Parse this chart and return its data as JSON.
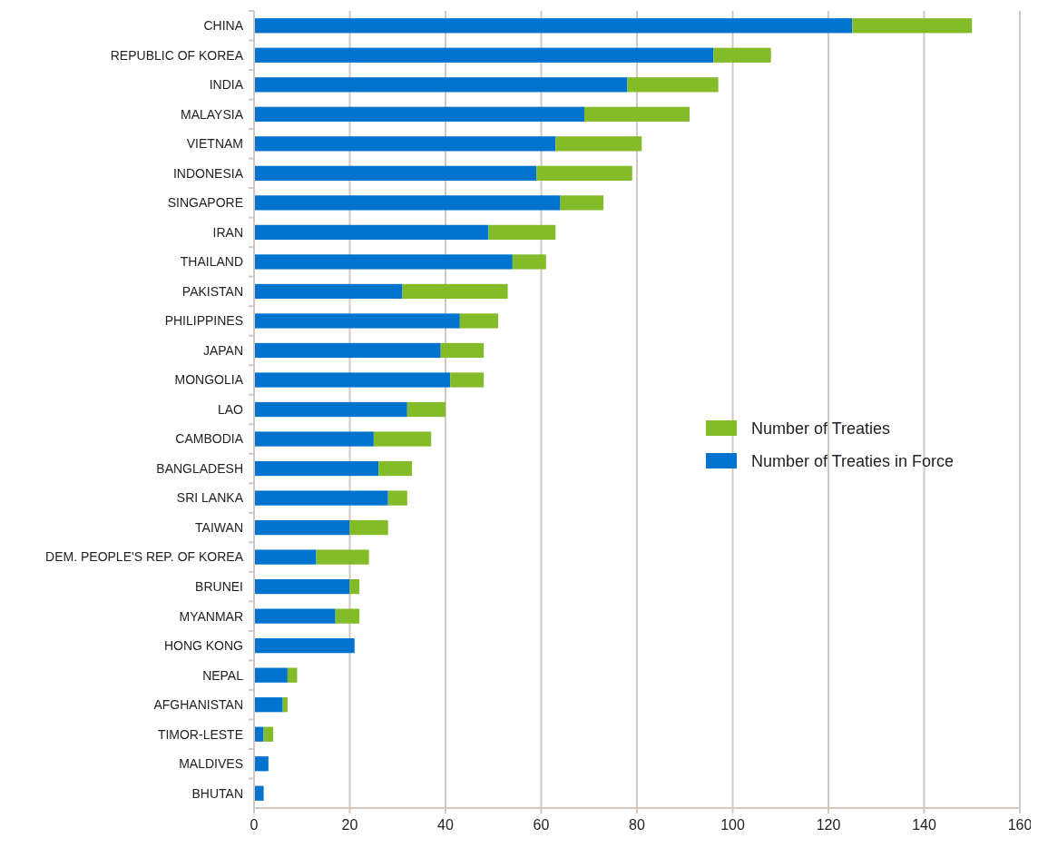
{
  "chart_data": {
    "type": "bar",
    "orientation": "horizontal",
    "stacked": true,
    "categories": [
      "CHINA",
      "REPUBLIC OF KOREA",
      "INDIA",
      "MALAYSIA",
      "VIETNAM",
      "INDONESIA",
      "SINGAPORE",
      "IRAN",
      "THAILAND",
      "PAKISTAN",
      "PHILIPPINES",
      "JAPAN",
      "MONGOLIA",
      "LAO",
      "CAMBODIA",
      "BANGLADESH",
      "SRI LANKA",
      "TAIWAN",
      "DEM. PEOPLE'S REP. OF KOREA",
      "BRUNEI",
      "MYANMAR",
      "HONG KONG",
      "NEPAL",
      "AFGHANISTAN",
      "TIMOR-LESTE",
      "MALDIVES",
      "BHUTAN"
    ],
    "series": [
      {
        "name": "Number of Treaties in Force",
        "color": "#0073cf",
        "values": [
          125,
          96,
          78,
          69,
          63,
          59,
          64,
          49,
          54,
          31,
          43,
          39,
          41,
          32,
          25,
          26,
          28,
          20,
          13,
          20,
          17,
          21,
          7,
          6,
          2,
          3,
          2
        ]
      },
      {
        "name": "Number of Treaties",
        "color": "#84bb29",
        "values": [
          25,
          12,
          19,
          22,
          18,
          20,
          9,
          14,
          7,
          22,
          8,
          9,
          7,
          8,
          12,
          7,
          4,
          8,
          11,
          2,
          5,
          0,
          2,
          1,
          2,
          0,
          0
        ]
      }
    ],
    "xlim": [
      0,
      160
    ],
    "xticks": [
      0,
      20,
      40,
      60,
      80,
      100,
      120,
      140,
      160
    ],
    "grid": "x",
    "legend": "right"
  }
}
